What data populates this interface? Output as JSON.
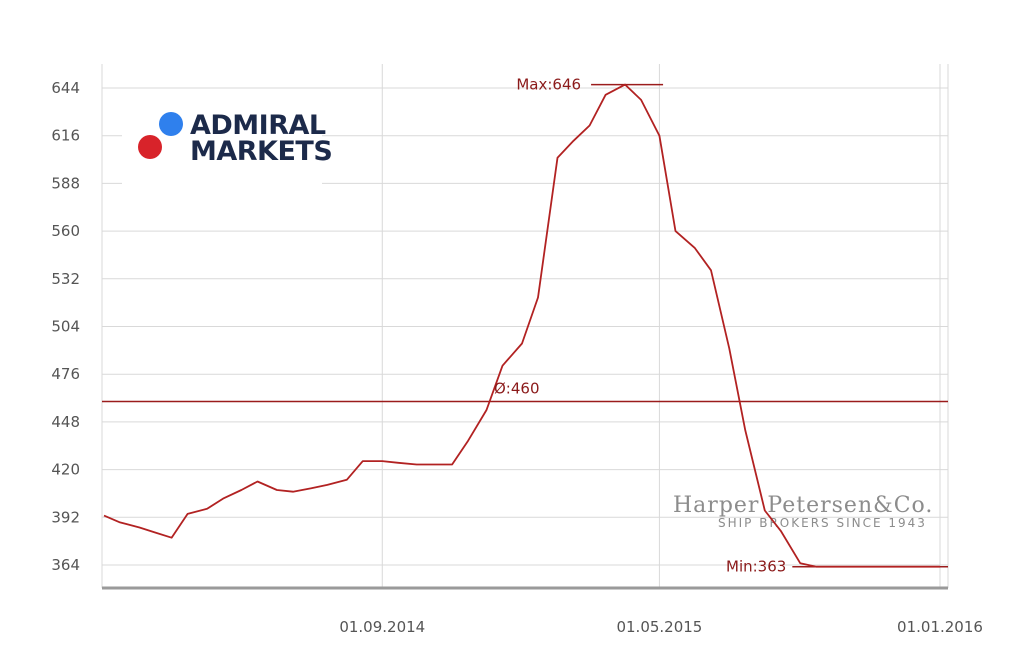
{
  "chart_data": {
    "type": "line",
    "y_ticks": [
      364,
      392,
      420,
      448,
      476,
      504,
      532,
      560,
      588,
      616,
      644
    ],
    "x_ticks": [
      "01.09.2014",
      "01.05.2015",
      "01.01.2016"
    ],
    "ylim": [
      364,
      644
    ],
    "grid": true,
    "series_color": "#b22222",
    "reference_color": "#9b1c1c",
    "average": {
      "label": "Ø:460",
      "value": 460
    },
    "max": {
      "label": "Max:646",
      "value": 646
    },
    "min": {
      "label": "Min:363",
      "value": 363
    },
    "x_dates": [
      "2014-01-01",
      "2014-01-15",
      "2014-02-01",
      "2014-02-15",
      "2014-03-01",
      "2014-03-15",
      "2014-04-01",
      "2014-04-15",
      "2014-05-01",
      "2014-05-15",
      "2014-06-01",
      "2014-06-15",
      "2014-07-01",
      "2014-07-15",
      "2014-08-01",
      "2014-08-15",
      "2014-09-01",
      "2014-09-15",
      "2014-10-01",
      "2014-10-15",
      "2014-11-01",
      "2014-11-15",
      "2014-12-01",
      "2014-12-15",
      "2015-01-01",
      "2015-01-15",
      "2015-02-01",
      "2015-02-15",
      "2015-03-01",
      "2015-03-15",
      "2015-04-01",
      "2015-04-15",
      "2015-05-01",
      "2015-05-15",
      "2015-06-01",
      "2015-06-15",
      "2015-07-01",
      "2015-07-15",
      "2015-08-01",
      "2015-08-15",
      "2015-09-01",
      "2015-09-15",
      "2015-10-01",
      "2015-10-15",
      "2015-11-01",
      "2015-11-15",
      "2015-12-01",
      "2015-12-15",
      "2016-01-01"
    ],
    "values": [
      393,
      389,
      386,
      383,
      380,
      394,
      397,
      403,
      408,
      413,
      408,
      407,
      409,
      411,
      414,
      425,
      425,
      424,
      423,
      423,
      423,
      437,
      455,
      481,
      494,
      521,
      603,
      613,
      622,
      640,
      646,
      637,
      616,
      560,
      550,
      537,
      491,
      443,
      396,
      384,
      365,
      363,
      363,
      363,
      363,
      363,
      363,
      363,
      363
    ]
  },
  "logos": {
    "admiral": {
      "line1": "ADMIRAL",
      "line2": "MARKETS",
      "dot_blue": "#2f80ed",
      "dot_red": "#d8232a"
    },
    "harper": {
      "name_line": "Harper Petersen&Co.",
      "sub_line": "SHIP BROKERS SINCE 1943"
    }
  }
}
